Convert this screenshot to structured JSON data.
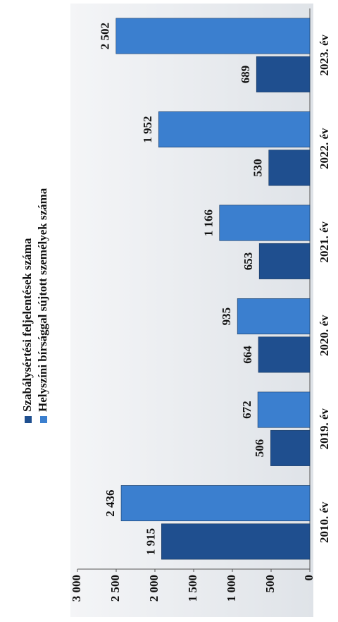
{
  "chart_data": {
    "type": "bar",
    "categories": [
      "2010. év",
      "2019. év",
      "2020. év",
      "2021. év",
      "2022. év",
      "2023. év"
    ],
    "series": [
      {
        "name": "Szabálysértési feljelentések száma",
        "color": "#1f4f8f",
        "values": [
          1915,
          506,
          664,
          653,
          530,
          689
        ],
        "value_labels": [
          "1 915",
          "506",
          "664",
          "653",
          "530",
          "689"
        ]
      },
      {
        "name": "Helyszíni bírsággal sújtott személyek száma",
        "color": "#3b7fcf",
        "values": [
          2436,
          672,
          935,
          1166,
          1952,
          2502
        ],
        "value_labels": [
          "2 436",
          "672",
          "935",
          "1 166",
          "1 952",
          "2 502"
        ]
      }
    ],
    "ylim": [
      0,
      3000
    ],
    "yticks": [
      0,
      500,
      {
        "value": 1000,
        "label": "1 000"
      },
      {
        "value": 1500,
        "label": "1 500"
      },
      {
        "value": 2000,
        "label": "2 000"
      },
      {
        "value": 2500,
        "label": "2 500"
      },
      {
        "value": 3000,
        "label": "3 000"
      }
    ]
  }
}
